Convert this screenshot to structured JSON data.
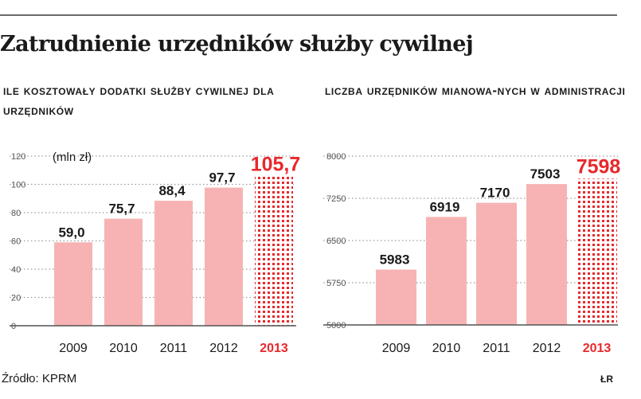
{
  "title": "Zatrudnienie urzędników służby cywilnej",
  "source": "Źródło: KPRM",
  "author_mark": "ŁR",
  "colors": {
    "bar": "#f7b3b3",
    "highlight": "#e8282b",
    "text": "#1a1a1a",
    "axis": "#555555",
    "grid": "#9a9a9a"
  },
  "chart_data": [
    {
      "type": "bar",
      "title": "Ile kosztowały dodatki służby cywilnej dla urzędników",
      "unit": "(mln zł)",
      "categories": [
        "2009",
        "2010",
        "2011",
        "2012",
        "2013"
      ],
      "values": [
        59.0,
        75.7,
        88.4,
        97.7,
        105.7
      ],
      "value_labels": [
        "59,0",
        "75,7",
        "88,4",
        "97,7",
        "105,7"
      ],
      "highlighted_category": "2013",
      "yticks": [
        "120",
        "100",
        "80",
        "60",
        "40",
        "20",
        "0"
      ],
      "ylim": [
        0,
        120
      ],
      "grid": true
    },
    {
      "type": "bar",
      "title": "Liczba urzędników mianowa-nych w administracji",
      "categories": [
        "2009",
        "2010",
        "2011",
        "2012",
        "2013"
      ],
      "values": [
        5983,
        6919,
        7170,
        7503,
        7598
      ],
      "value_labels": [
        "5983",
        "6919",
        "7170",
        "7503",
        "7598"
      ],
      "highlighted_category": "2013",
      "yticks": [
        "8000",
        "7250",
        "6500",
        "5750",
        "5000"
      ],
      "ylim": [
        5000,
        8000
      ],
      "grid": true
    }
  ]
}
